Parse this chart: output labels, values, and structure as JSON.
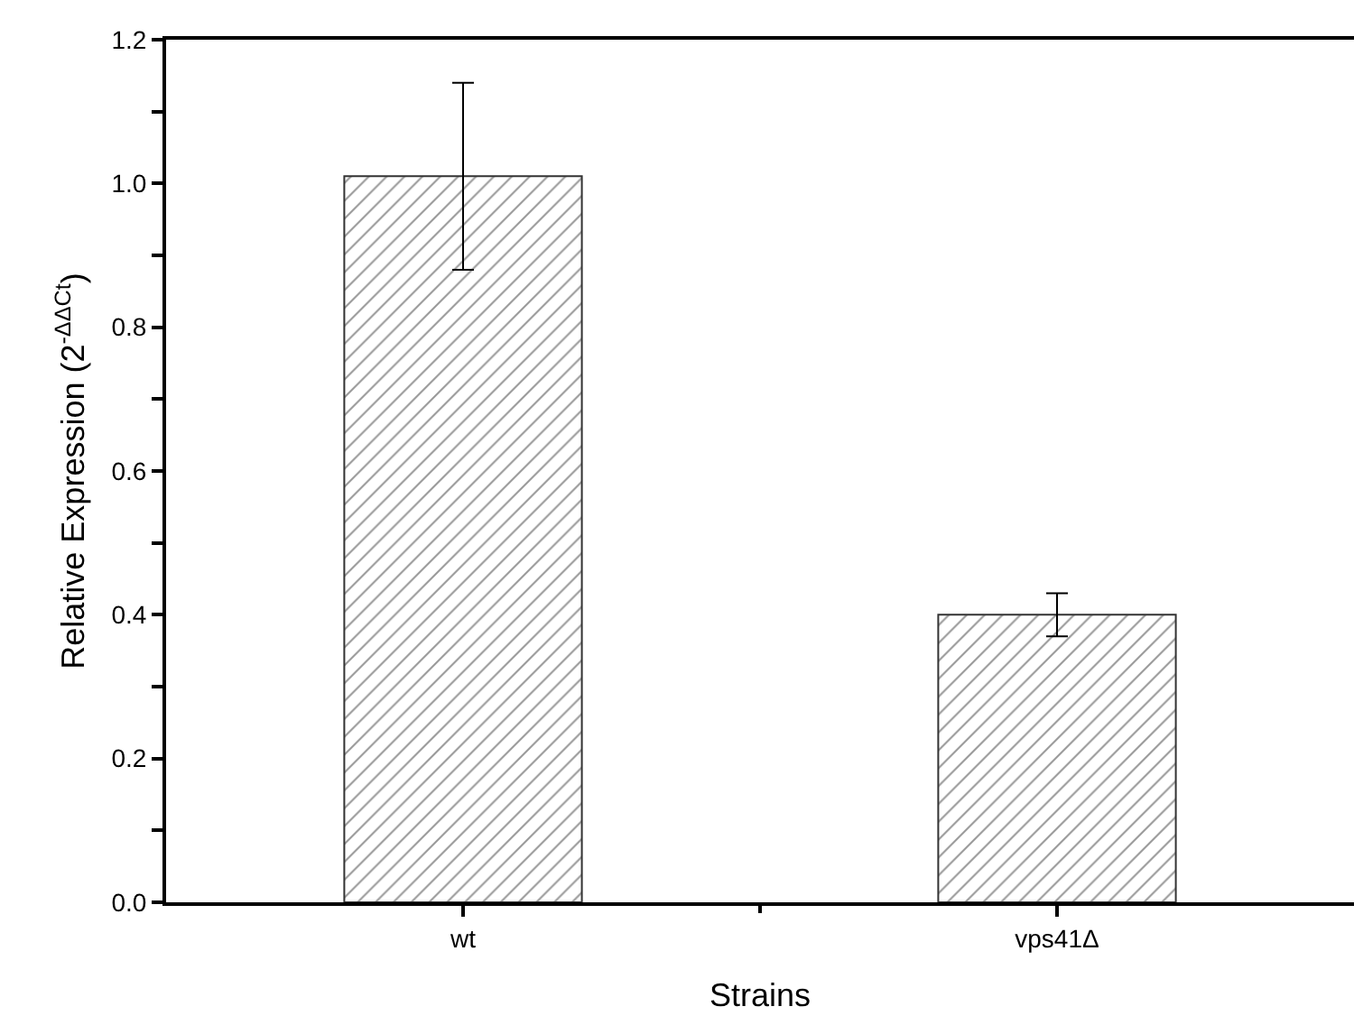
{
  "chart_data": {
    "type": "bar",
    "xlabel": "Strains",
    "ylabel": "Relative Expression (2$^{-ΔΔCt}$)",
    "categories": [
      "wt",
      "vps41Δ"
    ],
    "values": [
      1.01,
      0.4
    ],
    "errors": [
      0.13,
      0.03
    ],
    "color": "#333333",
    "ylim": [
      0,
      1.2
    ],
    "yticks": [
      {
        "value": 0,
        "label": "0.0"
      },
      {
        "value": 0.1,
        "label": null
      },
      0.2,
      {
        "value": 0.3,
        "label": null
      },
      0.4,
      {
        "value": 0.5,
        "label": null
      },
      0.6,
      {
        "value": 0.7,
        "label": null
      },
      0.8,
      {
        "value": 0.9,
        "label": null
      },
      {
        "value": 1.0,
        "label": "1.0"
      },
      {
        "value": 1.1,
        "label": null
      },
      1.2
    ]
  }
}
